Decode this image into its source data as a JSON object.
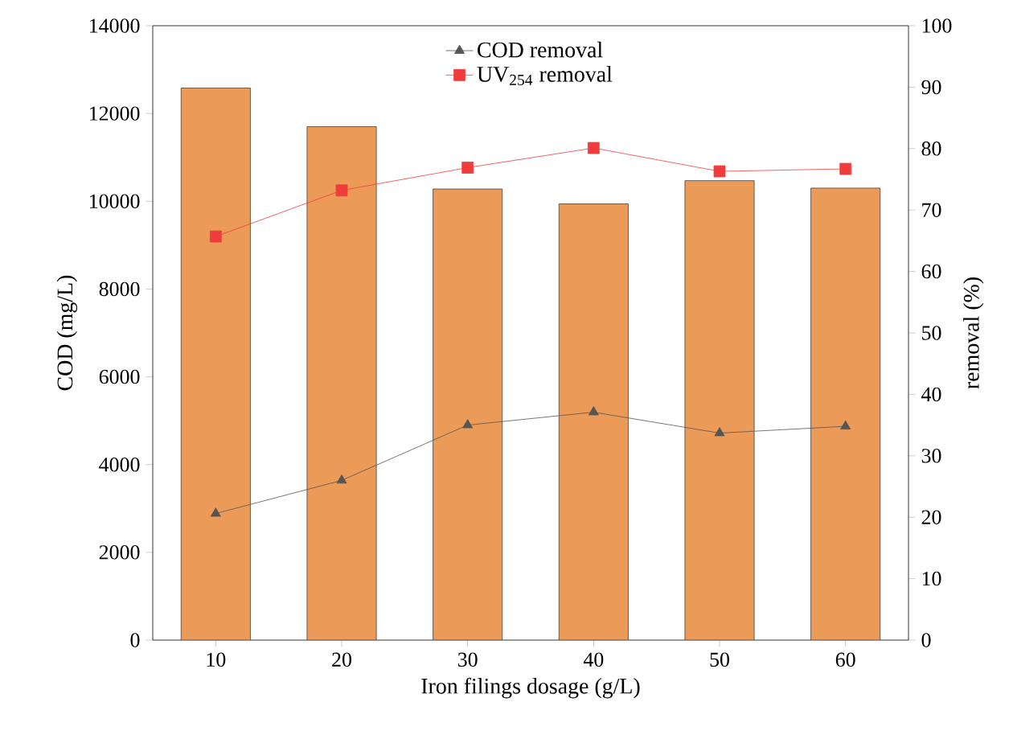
{
  "chart_data": {
    "type": "bar",
    "xlabel": "Iron filings dosage (g/L)",
    "ylabel": "COD (mg/L)",
    "y2label": "removal (%)",
    "categories": [
      "10",
      "20",
      "30",
      "40",
      "50",
      "60"
    ],
    "ylim": [
      0,
      14000
    ],
    "yticks": [
      0,
      2000,
      4000,
      6000,
      8000,
      10000,
      12000,
      14000
    ],
    "y2lim": [
      0,
      100
    ],
    "y2ticks": [
      0,
      10,
      20,
      30,
      40,
      50,
      60,
      70,
      80,
      90,
      100
    ],
    "legend": "top",
    "grid": false,
    "series": [
      {
        "color": "#eb9a58",
        "values": [
          12580,
          11700,
          10280,
          9940,
          10470,
          10300
        ]
      },
      {
        "type": "line",
        "axis": "y2",
        "name": "COD removal",
        "color": "#555555",
        "marker": "triangle",
        "line_style": "solid",
        "values": [
          20.6,
          26.0,
          35.0,
          37.1,
          33.7,
          34.8
        ]
      },
      {
        "type": "line",
        "axis": "y2",
        "name": "UV$_{254}$ removal",
        "color": "#f03c3c",
        "marker": "square",
        "line_style": "solid",
        "values": [
          65.7,
          73.2,
          76.9,
          80.1,
          76.3,
          76.7
        ]
      }
    ]
  }
}
